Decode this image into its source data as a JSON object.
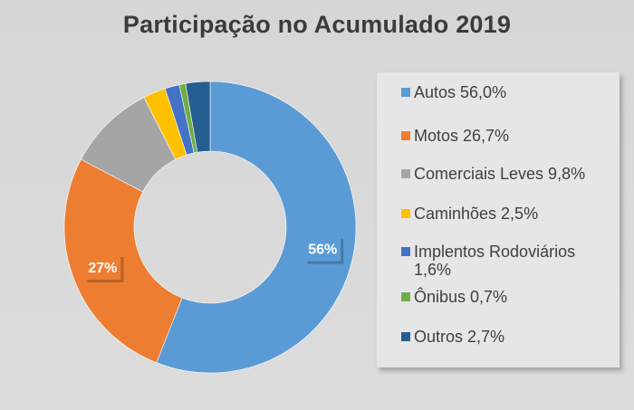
{
  "chart_data": {
    "type": "donut",
    "title": "Participação no Acumulado 2019",
    "slices": [
      {
        "label": "Autos 56,0%",
        "value": 56.0,
        "color": "#5b9bd5"
      },
      {
        "label": "Motos 26,7%",
        "value": 26.7,
        "color": "#ed7d31"
      },
      {
        "label": "Comerciais Leves 9,8%",
        "value": 9.8,
        "color": "#a5a5a5"
      },
      {
        "label": "Caminhões 2,5%",
        "value": 2.5,
        "color": "#ffc000"
      },
      {
        "label": "Implentos Rodoviários 1,6%",
        "value": 1.6,
        "color": "#4472c4"
      },
      {
        "label": "Ônibus 0,7%",
        "value": 0.7,
        "color": "#70ad47"
      },
      {
        "label": "Outros 2,7%",
        "value": 2.7,
        "color": "#255e91"
      }
    ],
    "data_labels": [
      {
        "series_index": 0,
        "text": "56%"
      },
      {
        "series_index": 1,
        "text": "27%"
      }
    ],
    "legend_position": "right"
  }
}
